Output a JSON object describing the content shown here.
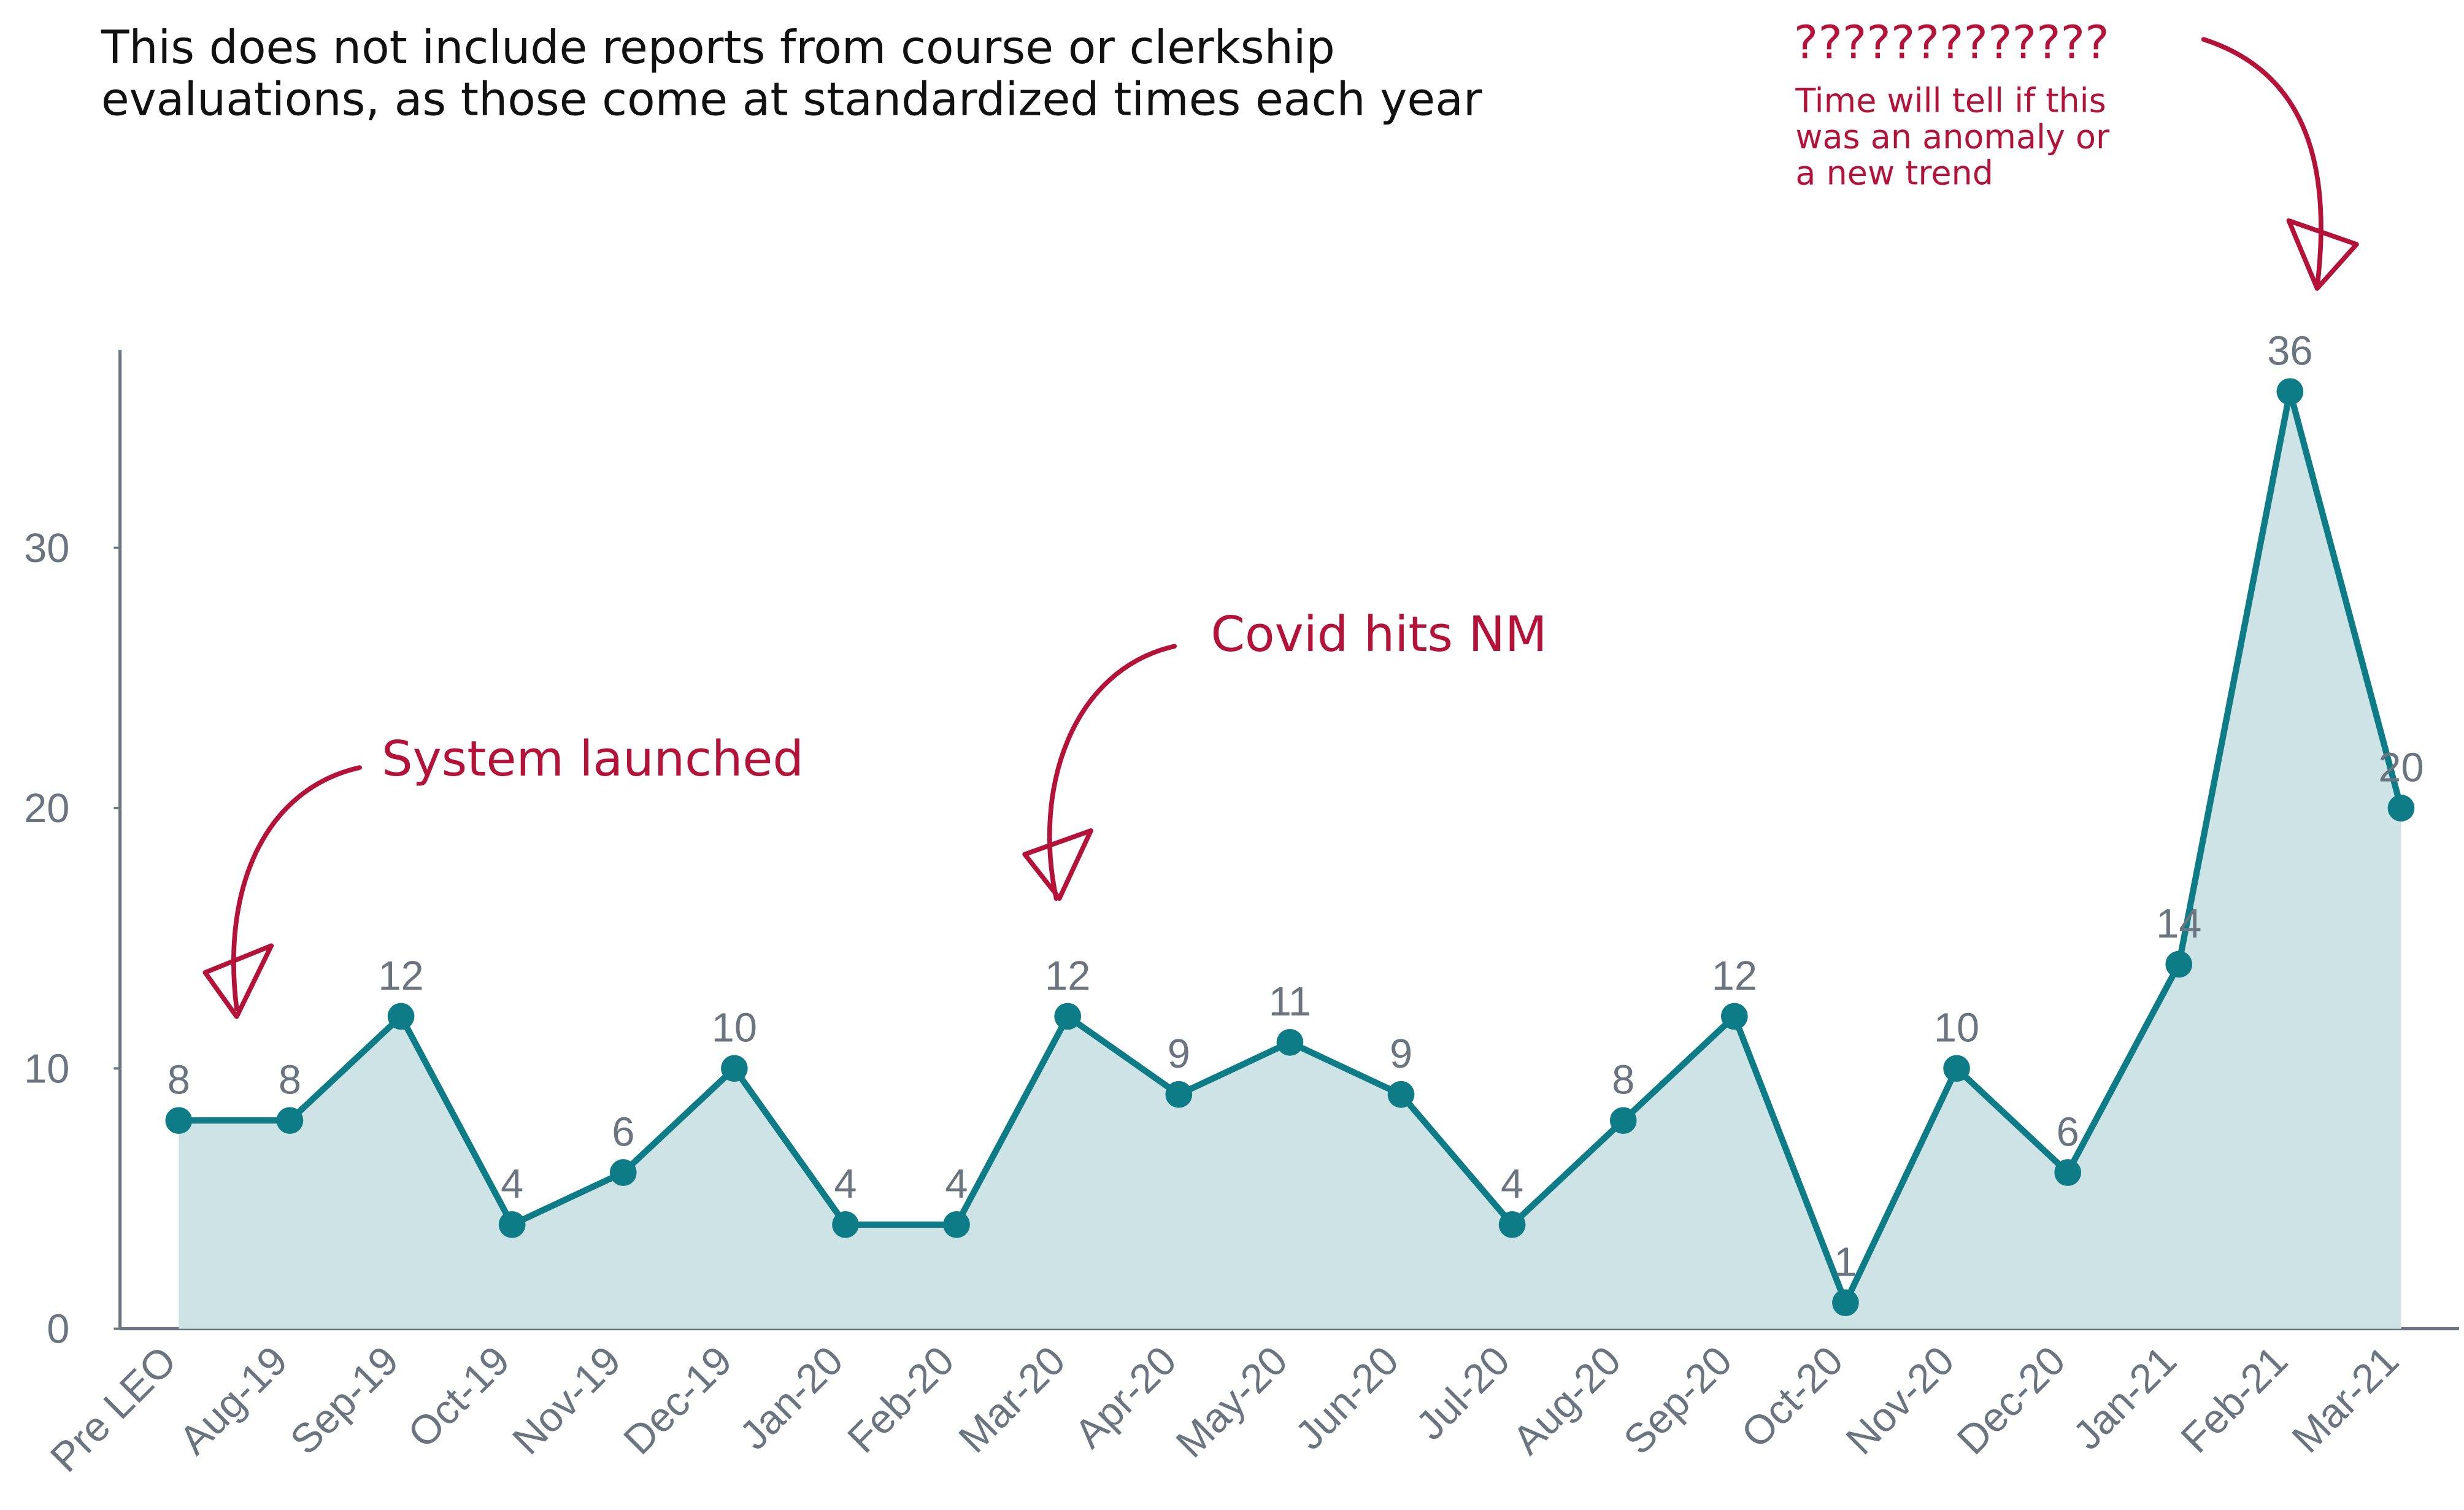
{
  "chart_data": {
    "type": "line",
    "subtitle": [
      "This does not include reports from course or clerkship",
      "evaluations, as those come at standardized times each year"
    ],
    "annotations": [
      {
        "text": [
          "System launched"
        ]
      },
      {
        "text": [
          "Covid hits NM"
        ]
      },
      {
        "text": [
          "?????????????"
        ]
      },
      {
        "text": [
          "Time will tell if this",
          "was an anomaly or",
          "a new trend"
        ]
      }
    ],
    "categories": [
      "Pre LEO",
      "Aug-19",
      "Sep-19",
      "Oct-19",
      "Nov-19",
      "Dec-19",
      "Jan-20",
      "Feb-20",
      "Mar-20",
      "Apr-20",
      "May-20",
      "Jun-20",
      "Jul-20",
      "Aug-20",
      "Sep-20",
      "Oct-20",
      "Nov-20",
      "Dec-20",
      "Jan-21",
      "Feb-21",
      "Mar-21"
    ],
    "values": [
      8,
      8,
      12,
      4,
      6,
      10,
      4,
      4,
      12,
      9,
      11,
      9,
      4,
      8,
      12,
      1,
      10,
      6,
      14,
      36,
      20
    ],
    "color": "#0e7c86",
    "area_color": "#cde3e6",
    "ylim": [
      0,
      37.6
    ],
    "yticks": [
      0,
      10,
      20,
      30
    ],
    "grid": false
  }
}
